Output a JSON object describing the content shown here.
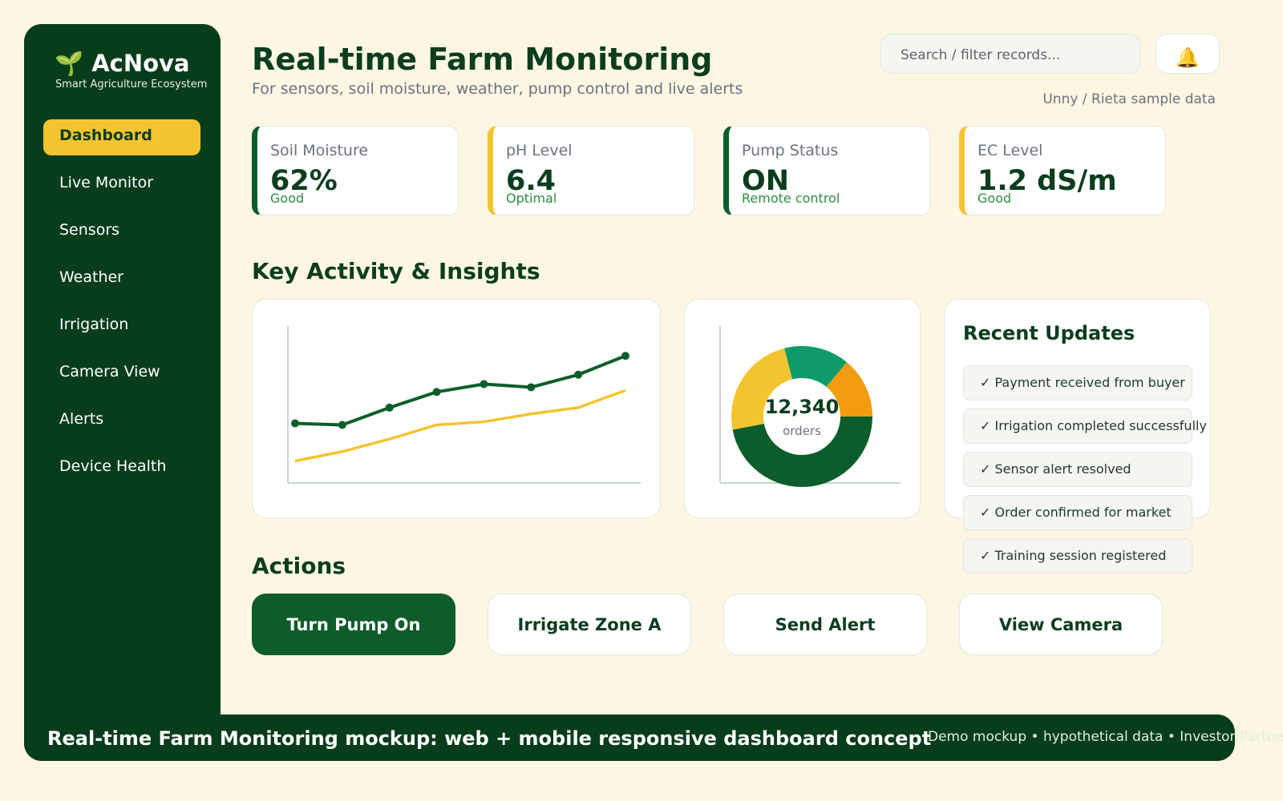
{
  "sidebar": {
    "logo": "🌱 AcNova",
    "tagline": "Smart Agriculture Ecosystem",
    "nav": [
      "Dashboard",
      "Live Monitor",
      "Sensors",
      "Weather",
      "Irrigation",
      "Camera View",
      "Alerts",
      "Device Health"
    ]
  },
  "header": {
    "title": "Real-time Farm Monitoring",
    "subtitle": "For sensors, soil moisture, weather, pump control and live alerts",
    "search_placeholder": "Search / filter records...",
    "notification_icon": "🔔",
    "data_note": "Unny / Rieta sample data"
  },
  "kpis": [
    {
      "label": "Soil Moisture",
      "value": "62%",
      "status": "Good"
    },
    {
      "label": "pH Level",
      "value": "6.4",
      "status": "Optimal"
    },
    {
      "label": "Pump Status",
      "value": "ON",
      "status": "Remote control"
    },
    {
      "label": "EC Level",
      "value": "1.2 dS/m",
      "status": "Good"
    }
  ],
  "section_titles": {
    "insights": "Key Activity & Insights",
    "actions": "Actions"
  },
  "line_chart": {
    "type": "line",
    "ylim": [
      0,
      100
    ],
    "series": [
      {
        "color": "#0b5e2b",
        "values": [
          38,
          37,
          48,
          58,
          63,
          61,
          69,
          81
        ]
      },
      {
        "color": "#f4c430",
        "values": [
          14,
          20,
          28,
          37,
          39,
          44,
          48,
          59
        ]
      }
    ]
  },
  "donut_chart": {
    "type": "pie",
    "center_value": "12,340",
    "center_label": "orders",
    "colors": [
      "#0b5e2b",
      "#f4c430",
      "#0f9a6a",
      "#f39c12"
    ],
    "values": [
      47,
      24,
      15,
      14
    ]
  },
  "updates": {
    "title": "Recent Updates",
    "items": [
      "✓ Payment received from buyer",
      "✓ Irrigation completed successfully",
      "✓ Sensor alert resolved",
      "✓ Order confirmed for market",
      "✓ Training session registered"
    ]
  },
  "actions": [
    "Turn Pump On",
    "Irrigate Zone A",
    "Send Alert",
    "View Camera"
  ],
  "footer": {
    "title": "Real-time Farm Monitoring mockup: web + mobile responsive dashboard concept",
    "note": "Demo mockup • hypothetical data • Investor/Partner preview"
  }
}
